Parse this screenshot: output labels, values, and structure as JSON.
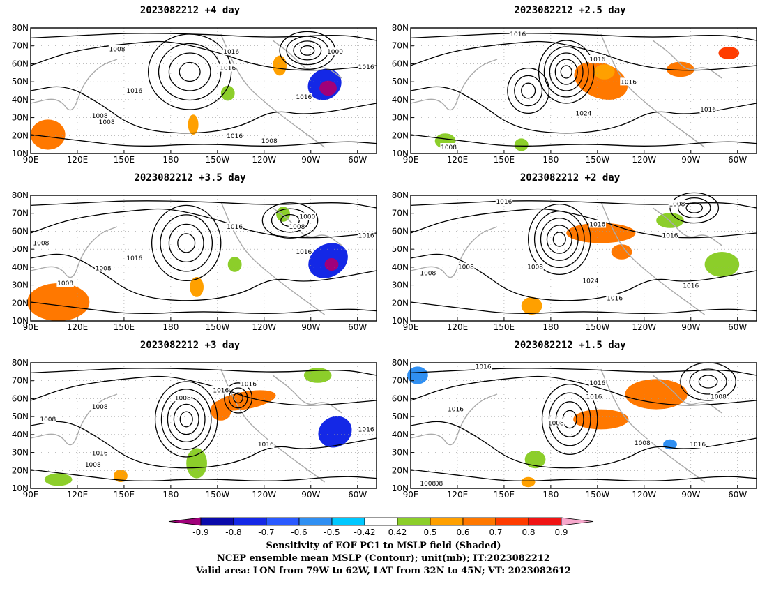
{
  "panels": [
    {
      "title": "2023082212 +4 day"
    },
    {
      "title": "2023082212 +2.5 day"
    },
    {
      "title": "2023082212 +3.5 day"
    },
    {
      "title": "2023082212 +2 day"
    },
    {
      "title": "2023082212 +3 day"
    },
    {
      "title": "2023082212 +1.5 day"
    }
  ],
  "axes": {
    "lat_labels": [
      "80N",
      "70N",
      "60N",
      "50N",
      "40N",
      "30N",
      "20N",
      "10N"
    ],
    "lon_labels": [
      "90E",
      "120E",
      "150E",
      "180",
      "150W",
      "120W",
      "90W",
      "60W"
    ]
  },
  "contour_labels": {
    "p0": [
      "1008",
      "1008",
      "1016",
      "1016",
      "1008",
      "1016",
      "1016",
      "1016",
      "1008",
      "1000",
      "1016"
    ],
    "p1": [
      "1016",
      "1016",
      "1016",
      "1024",
      "1008",
      "1016"
    ],
    "p2": [
      "1008",
      "1016",
      "1008",
      "1008",
      "1016",
      "1016",
      "1000",
      "1008",
      "1016"
    ],
    "p3": [
      "1016",
      "1016",
      "1008",
      "1008",
      "1008",
      "1024",
      "1016",
      "1008",
      "1016",
      "1016"
    ],
    "p4": [
      "1008",
      "1016",
      "1008",
      "1016",
      "1008",
      "1016",
      "1008",
      "1016",
      "1016"
    ],
    "p5": [
      "1016",
      "1016",
      "1008",
      "1016",
      "1008",
      "1016",
      "1008",
      "1016",
      "1008",
      "1008"
    ]
  },
  "colorbar": {
    "ticks": [
      "-0.9",
      "-0.8",
      "-0.7",
      "-0.6",
      "-0.5",
      "-0.42",
      "0.42",
      "0.5",
      "0.6",
      "0.7",
      "0.8",
      "0.9"
    ],
    "colors": [
      "#a0007a",
      "#0a0aaa",
      "#1428e6",
      "#2a5aff",
      "#2f8ff2",
      "#00c8ff",
      "#ffffff",
      "#8cce2a",
      "#ffa000",
      "#ff7800",
      "#ff3c00",
      "#f01414",
      "#f7a8cc"
    ]
  },
  "captions": [
    "Sensitivity of EOF PC1 to MSLP field (Shaded)",
    "NCEP ensemble mean MSLP (Contour); unit(mb); IT:2023082212",
    "Valid area: LON from 79W to 62W, LAT from 32N to 45N; VT: 2023082612"
  ]
}
